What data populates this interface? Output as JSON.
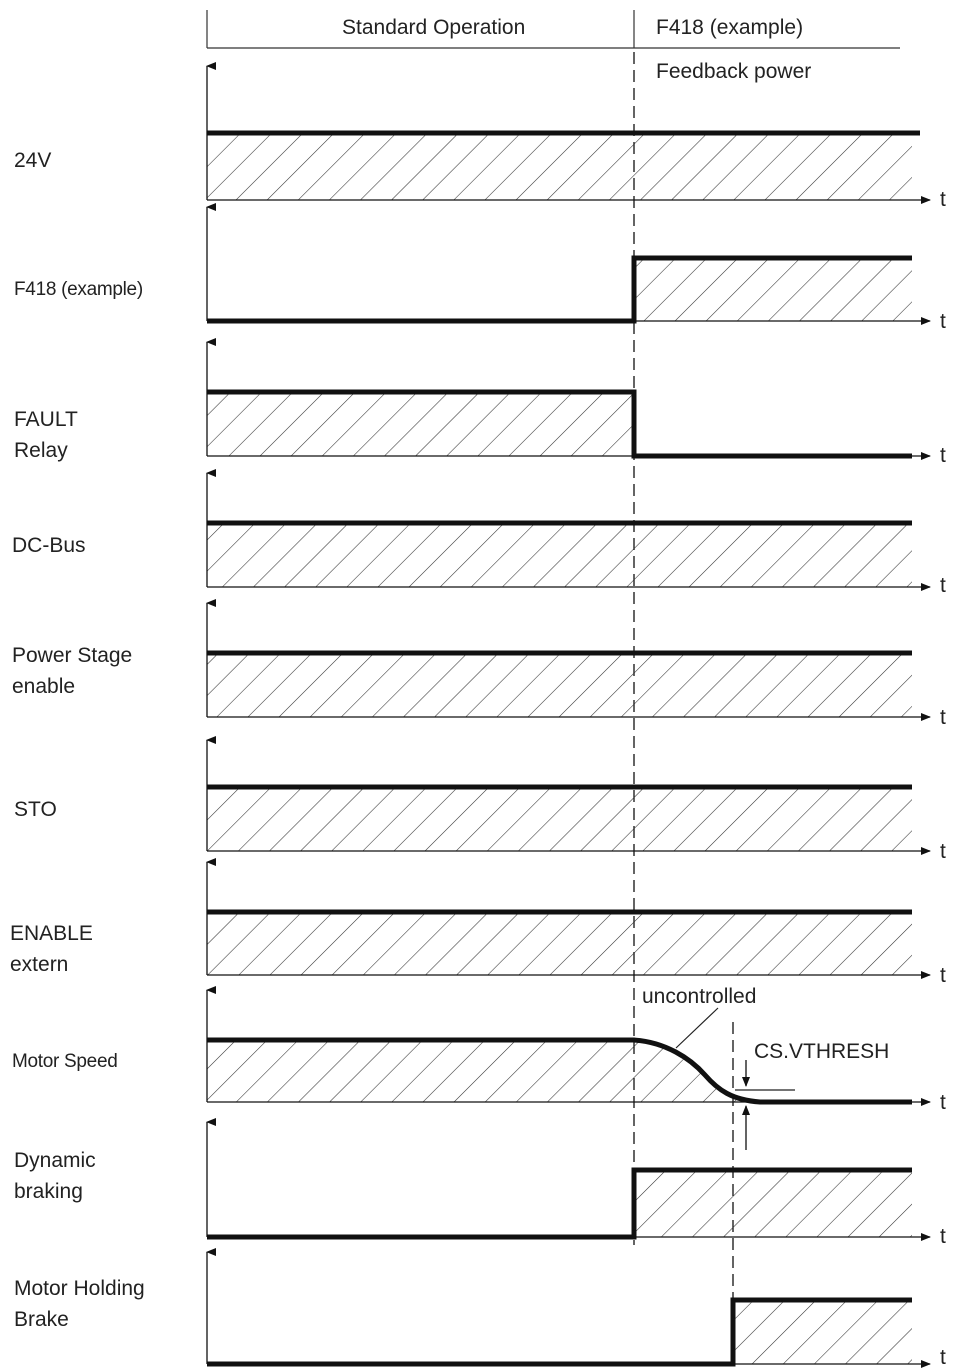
{
  "header": {
    "phase_standard": "Standard Operation",
    "phase_fault": "F418 (example)",
    "fault_note": "Feedback power"
  },
  "time_axis_label": "t",
  "signals": [
    {
      "id": "24v",
      "label_lines": [
        "24V"
      ],
      "state_before_fault": "high",
      "state_after_fault": "high"
    },
    {
      "id": "f418",
      "label_lines": [
        "F418 (example)"
      ],
      "state_before_fault": "low",
      "state_after_fault": "high"
    },
    {
      "id": "fault-relay",
      "label_lines": [
        "FAULT",
        "Relay"
      ],
      "state_before_fault": "high",
      "state_after_fault": "low"
    },
    {
      "id": "dc-bus",
      "label_lines": [
        "DC-Bus"
      ],
      "state_before_fault": "high",
      "state_after_fault": "high"
    },
    {
      "id": "power-stage",
      "label_lines": [
        "Power Stage",
        "enable"
      ],
      "state_before_fault": "high",
      "state_after_fault": "high"
    },
    {
      "id": "sto",
      "label_lines": [
        "STO"
      ],
      "state_before_fault": "high",
      "state_after_fault": "high"
    },
    {
      "id": "enable-extern",
      "label_lines": [
        "ENABLE",
        "extern"
      ],
      "state_before_fault": "high",
      "state_after_fault": "high"
    },
    {
      "id": "motor-speed",
      "label_lines": [
        "Motor Speed"
      ],
      "state_before_fault": "high",
      "state_after_fault": "ramp down"
    },
    {
      "id": "dynamic-braking",
      "label_lines": [
        "Dynamic",
        "braking"
      ],
      "state_before_fault": "low",
      "state_after_fault": "high"
    },
    {
      "id": "holding-brake",
      "label_lines": [
        "Motor Holding",
        "Brake"
      ],
      "state_before_fault": "low",
      "state_after_fault": "high (after CS.VTHRESH)"
    }
  ],
  "annotations": {
    "uncontrolled": "uncontrolled",
    "threshold": "CS.VTHRESH"
  },
  "colors": {
    "line": "#111111",
    "hatch": "#333333",
    "text": "#222222",
    "background": "#ffffff"
  }
}
